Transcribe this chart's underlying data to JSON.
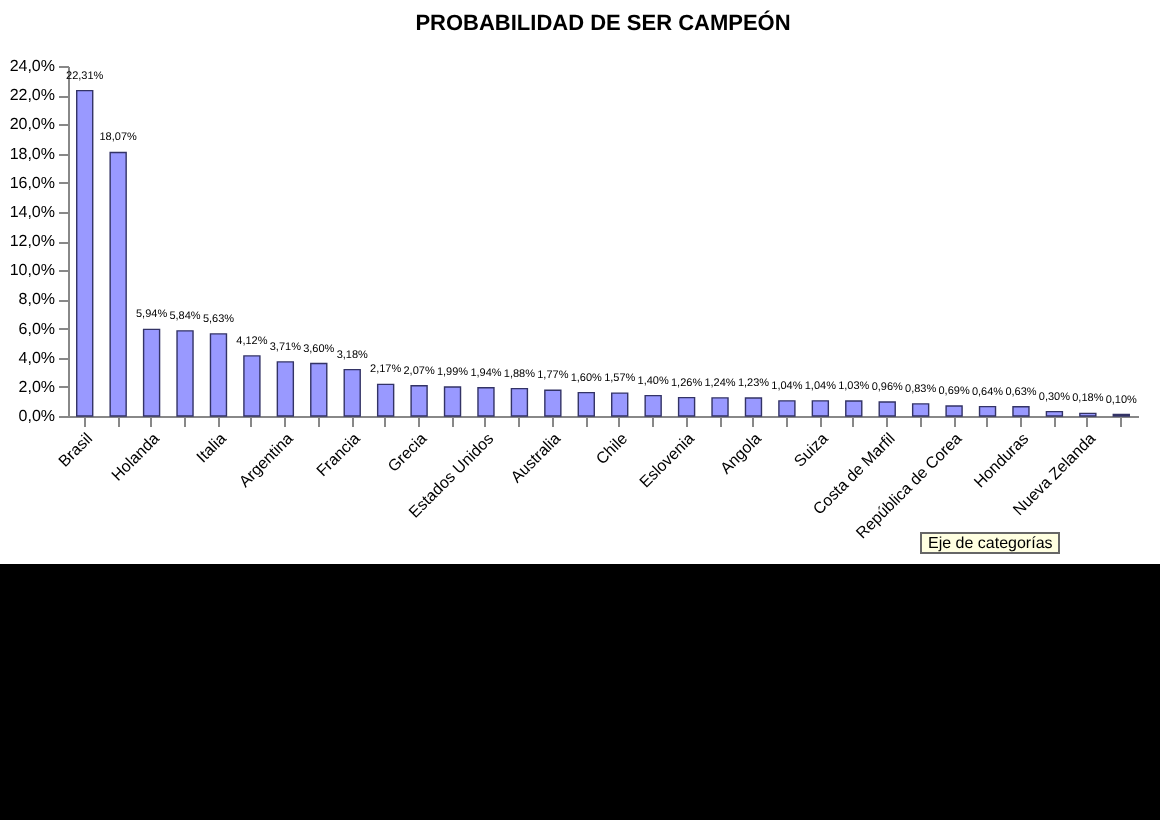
{
  "chart_data": {
    "type": "bar",
    "title": "PROBABILIDAD DE SER CAMPEÓN",
    "categories": [
      "Brasil",
      null,
      "Holanda",
      null,
      "Italia",
      null,
      "Argentina",
      null,
      "Francia",
      null,
      "Grecia",
      null,
      "Estados Unidos",
      null,
      "Australia",
      null,
      "Chile",
      null,
      "Eslovenia",
      null,
      "Angola",
      null,
      "Suiza",
      null,
      "Costa de Marfil",
      null,
      "República de Corea",
      null,
      "Honduras",
      null,
      "Nueva Zelanda",
      null
    ],
    "values": [
      22.31,
      18.07,
      5.94,
      5.84,
      5.63,
      4.12,
      3.71,
      3.6,
      3.18,
      2.17,
      2.07,
      1.99,
      1.94,
      1.88,
      1.77,
      1.6,
      1.57,
      1.4,
      1.26,
      1.24,
      1.23,
      1.04,
      1.04,
      1.03,
      0.96,
      0.83,
      0.69,
      0.64,
      0.63,
      0.3,
      0.18,
      0.1
    ],
    "value_labels": [
      "22,31%",
      "18,07%",
      "5,94%",
      "5,84%",
      "5,63%",
      "4,12%",
      "3,71%",
      "3,60%",
      "3,18%",
      "2,17%",
      "2,07%",
      "1,99%",
      "1,94%",
      "1,88%",
      "1,77%",
      "1,60%",
      "1,57%",
      "1,40%",
      "1,26%",
      "1,24%",
      "1,23%",
      "1,04%",
      "1,04%",
      "1,03%",
      "0,96%",
      "0,83%",
      "0,69%",
      "0,64%",
      "0,63%",
      "0,30%",
      "0,18%",
      "0,10%"
    ],
    "color": "#9999ff",
    "ylim": [
      0,
      24
    ],
    "yticks": [
      {
        "value": 0,
        "label": "0,0%"
      },
      {
        "value": 2,
        "label": "2,0%"
      },
      {
        "value": 4,
        "label": "4,0%"
      },
      {
        "value": 6,
        "label": "6,0%"
      },
      {
        "value": 8,
        "label": "8,0%"
      },
      {
        "value": 10,
        "label": "10,0%"
      },
      {
        "value": 12,
        "label": "12,0%"
      },
      {
        "value": 14,
        "label": "14,0%"
      },
      {
        "value": 16,
        "label": "16,0%"
      },
      {
        "value": 18,
        "label": "18,0%"
      },
      {
        "value": 20,
        "label": "20,0%"
      },
      {
        "value": 22,
        "label": "22,0%"
      },
      {
        "value": 24,
        "label": "24,0%"
      }
    ],
    "annotations": [
      "Eje de categorías"
    ],
    "grid": false
  }
}
